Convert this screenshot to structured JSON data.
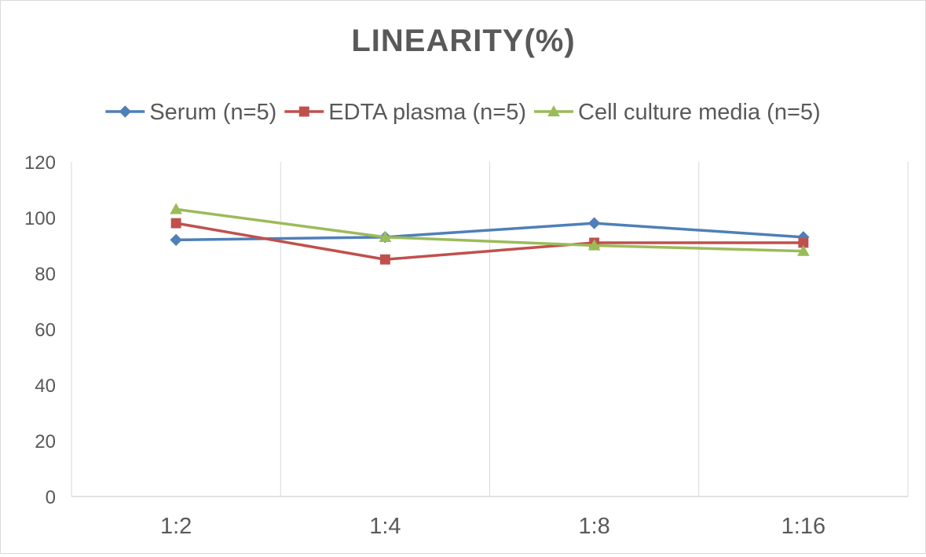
{
  "chart_data": {
    "type": "line",
    "title": "LINEARITY(%)",
    "xlabel": "",
    "ylabel": "",
    "categories": [
      "1:2",
      "1:4",
      "1:8",
      "1:16"
    ],
    "ylim": [
      0,
      120
    ],
    "yticks": [
      0,
      20,
      40,
      60,
      80,
      100,
      120
    ],
    "grid": "vertical",
    "legend_position": "top",
    "series": [
      {
        "name": "Serum (n=5)",
        "values": [
          92,
          93,
          98,
          93
        ],
        "color": "#4f7fb8",
        "marker": "diamond"
      },
      {
        "name": "EDTA plasma (n=5)",
        "values": [
          98,
          85,
          91,
          91
        ],
        "color": "#c0504d",
        "marker": "square"
      },
      {
        "name": "Cell culture media (n=5)",
        "values": [
          103,
          93,
          90,
          88
        ],
        "color": "#9bbb59",
        "marker": "triangle"
      }
    ]
  }
}
